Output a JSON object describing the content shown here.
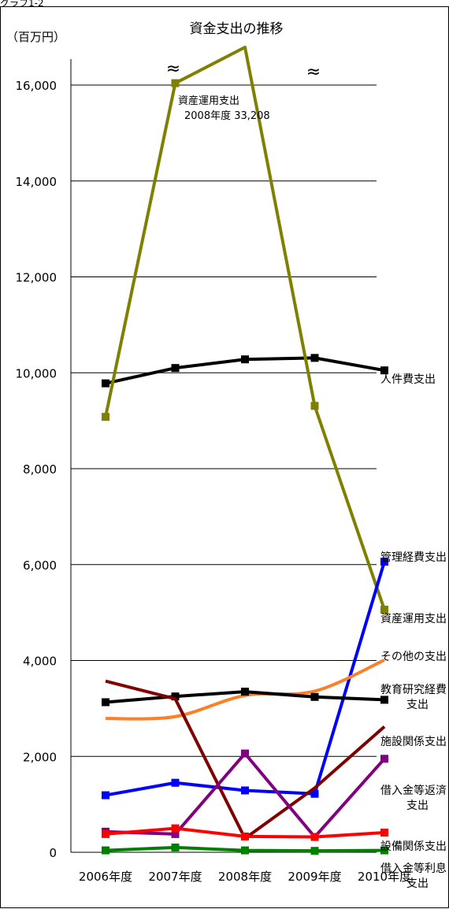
{
  "header_label": "グラフ1-2",
  "chart_data": {
    "type": "line",
    "title": "資金支出の推移",
    "unit_label": "（百万円）",
    "categories": [
      "2006年度",
      "2007年度",
      "2008年度",
      "2009年度",
      "2010年度"
    ],
    "ylim": [
      0,
      16800
    ],
    "yticks": [
      0,
      2000,
      4000,
      6000,
      8000,
      10000,
      12000,
      14000,
      16000
    ],
    "ytick_labels": [
      "0",
      "2,000",
      "4,000",
      "6,000",
      "8,000",
      "10,000",
      "12,000",
      "14,000",
      "16,000"
    ],
    "grid": true,
    "legend": "none (labels at right of series)",
    "break_symbol": "≈",
    "annotation": {
      "series": "資産運用支出",
      "lines": [
        "資産運用支出",
        "2008年度  33,208"
      ]
    },
    "series": [
      {
        "name": "人件費支出",
        "label_lines": [
          "人件費支出"
        ],
        "color": "#000000",
        "marker": "square",
        "values": [
          9780,
          10100,
          10280,
          10310,
          10050
        ]
      },
      {
        "name": "資産運用支出",
        "label_lines": [
          "資産運用支出"
        ],
        "color": "#808000",
        "marker": "square",
        "values": [
          9080,
          16040,
          33208,
          9310,
          5060
        ],
        "broken": true
      },
      {
        "name": "管理経費支出",
        "label_lines": [
          "管理経費支出"
        ],
        "color": "#0000ff",
        "marker": "square",
        "values": [
          1190,
          1450,
          1290,
          1220,
          6060
        ]
      },
      {
        "name": "その他の支出",
        "label_lines": [
          "その他の支出"
        ],
        "color": "#ff7f27",
        "marker": "none",
        "smooth": true,
        "values": [
          2790,
          2830,
          3270,
          3360,
          4010
        ]
      },
      {
        "name": "教育研究経費支出",
        "label_lines": [
          "教育研究経費",
          "支出"
        ],
        "color": "#000000",
        "marker": "square",
        "values": [
          3130,
          3250,
          3350,
          3240,
          3180
        ]
      },
      {
        "name": "施設関係支出",
        "label_lines": [
          "施設関係支出"
        ],
        "color": "#800000",
        "marker": "none",
        "values": [
          3570,
          3200,
          290,
          1340,
          2620
        ]
      },
      {
        "name": "借入金等返済支出",
        "label_lines": [
          "借入金等返済",
          "支出"
        ],
        "color": "#800080",
        "marker": "square",
        "values": [
          430,
          380,
          2060,
          320,
          1950
        ]
      },
      {
        "name": "設備関係支出",
        "label_lines": [
          "設備関係支出"
        ],
        "color": "#ff0000",
        "marker": "square",
        "values": [
          380,
          500,
          330,
          320,
          410
        ]
      },
      {
        "name": "借入金等利息支出",
        "label_lines": [
          "借入金等利息",
          "支出"
        ],
        "color": "#008000",
        "marker": "square",
        "values": [
          40,
          100,
          40,
          30,
          40
        ]
      }
    ]
  }
}
